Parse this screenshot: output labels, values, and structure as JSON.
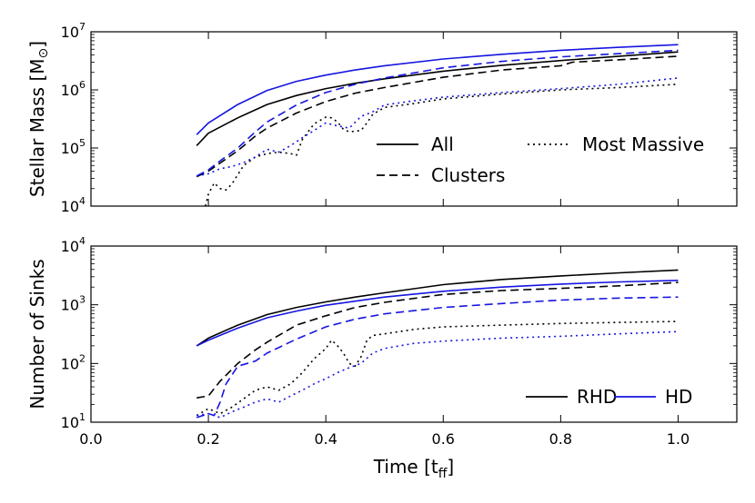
{
  "chart_data": [
    {
      "type": "line",
      "panel": "top",
      "title": "",
      "ylabel": "Stellar Mass [M",
      "ylabel_sub": "⊙",
      "ylabel_close": "]",
      "yscale": "log",
      "ylim": [
        10000,
        10000000
      ],
      "xlim": [
        0.0,
        1.1
      ],
      "yticks": [
        {
          "base": "10",
          "exp": "4",
          "value": 10000
        },
        {
          "base": "10",
          "exp": "5",
          "value": 100000
        },
        {
          "base": "10",
          "exp": "6",
          "value": 1000000
        },
        {
          "base": "10",
          "exp": "7",
          "value": 10000000
        }
      ],
      "legend": [
        {
          "label": "All",
          "dash": "solid"
        },
        {
          "label": "Clusters",
          "dash": "dashed"
        },
        {
          "label": "Most Massive",
          "dash": "dotted"
        }
      ],
      "series": [
        {
          "name": "RHD All",
          "color": "#000000",
          "dash": "solid",
          "x": [
            0.18,
            0.2,
            0.25,
            0.3,
            0.35,
            0.4,
            0.45,
            0.5,
            0.6,
            0.7,
            0.8,
            0.9,
            1.0
          ],
          "values": [
            110000,
            180000,
            330000,
            560000,
            800000,
            1050000,
            1300000,
            1550000,
            2100000,
            2650000,
            3200000,
            3800000,
            4500000
          ]
        },
        {
          "name": "HD All",
          "color": "#1515e0",
          "dash": "solid",
          "x": [
            0.18,
            0.2,
            0.25,
            0.3,
            0.35,
            0.4,
            0.45,
            0.5,
            0.6,
            0.7,
            0.8,
            0.9,
            1.0
          ],
          "values": [
            170000,
            270000,
            560000,
            980000,
            1400000,
            1800000,
            2200000,
            2600000,
            3400000,
            4100000,
            4800000,
            5400000,
            6000000
          ]
        },
        {
          "name": "RHD Clusters",
          "color": "#000000",
          "dash": "dashed",
          "x": [
            0.18,
            0.2,
            0.22,
            0.25,
            0.28,
            0.3,
            0.35,
            0.4,
            0.45,
            0.5,
            0.6,
            0.7,
            0.8,
            0.82,
            0.9,
            1.0
          ],
          "values": [
            32000,
            40000,
            55000,
            90000,
            160000,
            220000,
            400000,
            630000,
            880000,
            1100000,
            1650000,
            2200000,
            2600000,
            3000000,
            3300000,
            3800000
          ]
        },
        {
          "name": "HD Clusters",
          "color": "#1515e0",
          "dash": "dashed",
          "x": [
            0.18,
            0.2,
            0.22,
            0.25,
            0.28,
            0.3,
            0.35,
            0.4,
            0.45,
            0.5,
            0.6,
            0.7,
            0.8,
            0.9,
            1.0
          ],
          "values": [
            33000,
            42000,
            60000,
            100000,
            190000,
            280000,
            550000,
            900000,
            1250000,
            1600000,
            2400000,
            3100000,
            3700000,
            4200000,
            4800000
          ]
        },
        {
          "name": "RHD Most Massive",
          "color": "#000000",
          "dash": "dotted",
          "x": [
            0.195,
            0.2,
            0.21,
            0.22,
            0.23,
            0.24,
            0.26,
            0.28,
            0.3,
            0.32,
            0.34,
            0.35,
            0.36,
            0.38,
            0.4,
            0.41,
            0.42,
            0.43,
            0.44,
            0.46,
            0.47,
            0.48,
            0.5,
            0.55,
            0.6,
            0.7,
            0.8,
            0.9,
            1.0
          ],
          "values": [
            10000,
            16000,
            25000,
            20000,
            19000,
            24000,
            50000,
            70000,
            80000,
            85000,
            80000,
            75000,
            140000,
            260000,
            340000,
            330000,
            280000,
            210000,
            190000,
            200000,
            270000,
            380000,
            500000,
            580000,
            700000,
            850000,
            1000000,
            1100000,
            1250000
          ]
        },
        {
          "name": "HD Most Massive",
          "color": "#1515e0",
          "dash": "dotted",
          "x": [
            0.18,
            0.2,
            0.22,
            0.24,
            0.26,
            0.28,
            0.3,
            0.32,
            0.34,
            0.36,
            0.38,
            0.4,
            0.42,
            0.44,
            0.46,
            0.48,
            0.5,
            0.55,
            0.6,
            0.7,
            0.8,
            0.9,
            1.0
          ],
          "values": [
            33000,
            36000,
            44000,
            48000,
            56000,
            70000,
            95000,
            85000,
            110000,
            150000,
            200000,
            270000,
            240000,
            220000,
            350000,
            420000,
            550000,
            650000,
            750000,
            900000,
            1050000,
            1250000,
            1600000
          ]
        }
      ]
    },
    {
      "type": "line",
      "panel": "bottom",
      "title": "",
      "ylabel": "Number of Sinks",
      "xlabel": "Time [t",
      "xlabel_sub": "ff",
      "xlabel_close": "]",
      "yscale": "log",
      "ylim": [
        10,
        10000
      ],
      "xlim": [
        0.0,
        1.1
      ],
      "xticks": [
        "0.0",
        "0.2",
        "0.4",
        "0.6",
        "0.8",
        "1.0"
      ],
      "yticks": [
        {
          "base": "10",
          "exp": "1",
          "value": 10
        },
        {
          "base": "10",
          "exp": "2",
          "value": 100
        },
        {
          "base": "10",
          "exp": "3",
          "value": 1000
        },
        {
          "base": "10",
          "exp": "4",
          "value": 10000
        }
      ],
      "legend": [
        {
          "label": "RHD",
          "color": "#000000"
        },
        {
          "label": "HD",
          "color": "#1515e0"
        }
      ],
      "series": [
        {
          "name": "RHD All",
          "color": "#000000",
          "dash": "solid",
          "x": [
            0.18,
            0.2,
            0.25,
            0.3,
            0.35,
            0.4,
            0.45,
            0.5,
            0.6,
            0.7,
            0.8,
            0.9,
            1.0
          ],
          "values": [
            200,
            270,
            450,
            680,
            900,
            1120,
            1350,
            1600,
            2200,
            2700,
            3100,
            3500,
            3900
          ]
        },
        {
          "name": "HD All",
          "color": "#1515e0",
          "dash": "solid",
          "x": [
            0.18,
            0.2,
            0.25,
            0.3,
            0.35,
            0.4,
            0.45,
            0.5,
            0.6,
            0.7,
            0.8,
            0.9,
            1.0
          ],
          "values": [
            200,
            250,
            400,
            600,
            780,
            980,
            1150,
            1350,
            1700,
            2000,
            2250,
            2450,
            2600
          ]
        },
        {
          "name": "RHD Clusters",
          "color": "#000000",
          "dash": "dashed",
          "x": [
            0.18,
            0.2,
            0.22,
            0.25,
            0.28,
            0.3,
            0.35,
            0.4,
            0.45,
            0.5,
            0.6,
            0.7,
            0.8,
            0.9,
            1.0
          ],
          "values": [
            26,
            28,
            50,
            100,
            170,
            230,
            450,
            650,
            900,
            1100,
            1500,
            1750,
            1900,
            2100,
            2400
          ]
        },
        {
          "name": "HD Clusters",
          "color": "#1515e0",
          "dash": "dashed",
          "x": [
            0.18,
            0.2,
            0.21,
            0.22,
            0.23,
            0.25,
            0.28,
            0.3,
            0.35,
            0.4,
            0.45,
            0.5,
            0.6,
            0.7,
            0.8,
            0.9,
            1.0
          ],
          "values": [
            12,
            14,
            13,
            22,
            45,
            90,
            110,
            150,
            260,
            420,
            570,
            700,
            900,
            1050,
            1200,
            1300,
            1350
          ]
        },
        {
          "name": "RHD Most Massive",
          "color": "#000000",
          "dash": "dotted",
          "x": [
            0.18,
            0.2,
            0.22,
            0.24,
            0.26,
            0.28,
            0.3,
            0.32,
            0.34,
            0.36,
            0.38,
            0.4,
            0.41,
            0.42,
            0.43,
            0.44,
            0.45,
            0.46,
            0.47,
            0.48,
            0.5,
            0.55,
            0.6,
            0.7,
            0.8,
            0.9,
            1.0
          ],
          "values": [
            13,
            17,
            14,
            18,
            25,
            35,
            40,
            35,
            45,
            70,
            120,
            180,
            250,
            200,
            150,
            100,
            90,
            130,
            250,
            300,
            320,
            380,
            420,
            450,
            480,
            500,
            520
          ]
        },
        {
          "name": "HD Most Massive",
          "color": "#1515e0",
          "dash": "dotted",
          "x": [
            0.18,
            0.2,
            0.22,
            0.24,
            0.26,
            0.28,
            0.3,
            0.32,
            0.34,
            0.36,
            0.38,
            0.4,
            0.42,
            0.44,
            0.46,
            0.48,
            0.5,
            0.55,
            0.6,
            0.7,
            0.8,
            0.9,
            1.0
          ],
          "values": [
            13,
            14,
            12,
            15,
            18,
            22,
            25,
            22,
            28,
            35,
            45,
            55,
            70,
            85,
            100,
            150,
            180,
            220,
            240,
            270,
            290,
            320,
            350
          ]
        }
      ]
    }
  ]
}
